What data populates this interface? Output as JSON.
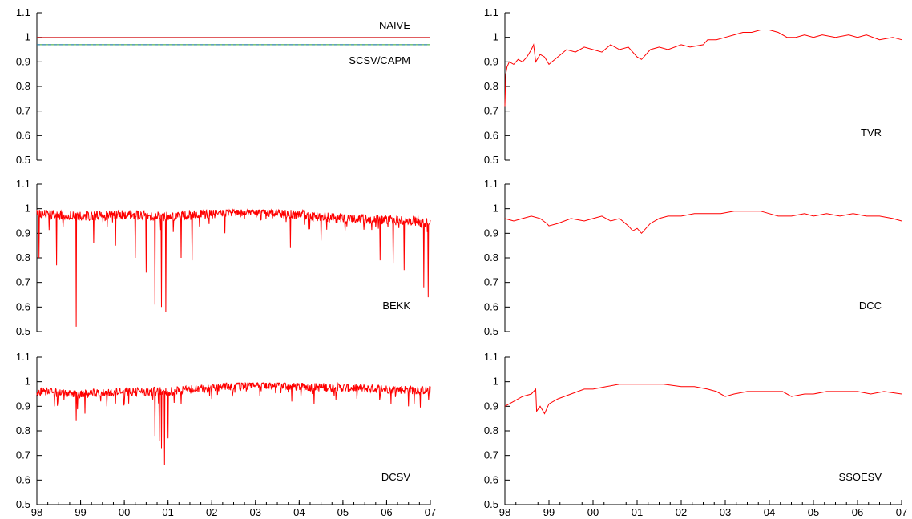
{
  "chart_data": [
    {
      "type": "line",
      "label": "NAIVE",
      "label2": "SCSV/CAPM",
      "ylim": [
        0.5,
        1.1
      ],
      "yticks": [
        "0.5",
        "0.6",
        "0.7",
        "0.8",
        "0.9",
        "1",
        "1.1"
      ],
      "xlim": [
        1998,
        2007
      ],
      "series": [
        {
          "name": "NAIVE",
          "color": "#d62728",
          "dash": "",
          "x": [
            1998,
            2007
          ],
          "y": [
            1.0,
            1.0
          ]
        },
        {
          "name": "SCSV/CAPM",
          "color": "#2ca02c",
          "dash": "",
          "x": [
            1998,
            2007
          ],
          "y": [
            0.97,
            0.97
          ]
        },
        {
          "name": "SCSV/CAPM",
          "color": "#1f77b4",
          "dash": "4,3",
          "x": [
            1998,
            2007
          ],
          "y": [
            0.97,
            0.97
          ]
        }
      ]
    },
    {
      "type": "line",
      "label": "TVR",
      "ylim": [
        0.5,
        1.1
      ],
      "yticks": [
        "0.5",
        "0.6",
        "0.7",
        "0.8",
        "0.9",
        "1",
        "1.1"
      ],
      "xlim": [
        1998,
        2007
      ],
      "series": [
        {
          "color": "#ff0000",
          "x": [
            1998.0,
            1998.02,
            1998.05,
            1998.1,
            1998.2,
            1998.3,
            1998.4,
            1998.5,
            1998.6,
            1998.65,
            1998.7,
            1998.8,
            1998.9,
            1999.0,
            1999.2,
            1999.4,
            1999.6,
            1999.8,
            2000.0,
            2000.2,
            2000.4,
            2000.6,
            2000.8,
            2001.0,
            2001.1,
            2001.3,
            2001.5,
            2001.7,
            2002.0,
            2002.2,
            2002.5,
            2002.6,
            2002.8,
            2003.0,
            2003.2,
            2003.4,
            2003.6,
            2003.8,
            2004.0,
            2004.2,
            2004.4,
            2004.6,
            2004.8,
            2005.0,
            2005.2,
            2005.5,
            2005.8,
            2006.0,
            2006.2,
            2006.5,
            2006.8,
            2007.0
          ],
          "y": [
            0.72,
            0.85,
            0.88,
            0.9,
            0.89,
            0.91,
            0.9,
            0.92,
            0.95,
            0.97,
            0.9,
            0.93,
            0.92,
            0.89,
            0.92,
            0.95,
            0.94,
            0.96,
            0.95,
            0.94,
            0.97,
            0.95,
            0.96,
            0.92,
            0.91,
            0.95,
            0.96,
            0.95,
            0.97,
            0.96,
            0.97,
            0.99,
            0.99,
            1.0,
            1.01,
            1.02,
            1.02,
            1.03,
            1.03,
            1.02,
            1.0,
            1.0,
            1.01,
            1.0,
            1.01,
            1.0,
            1.01,
            1.0,
            1.01,
            0.99,
            1.0,
            0.99
          ]
        }
      ]
    },
    {
      "type": "line",
      "label": "BEKK",
      "ylim": [
        0.5,
        1.1
      ],
      "yticks": [
        "0.5",
        "0.6",
        "0.7",
        "0.8",
        "0.9",
        "1",
        "1.1"
      ],
      "xlim": [
        1998,
        2007
      ],
      "base": [
        [
          1998,
          0.98
        ],
        [
          1999,
          0.97
        ],
        [
          2000,
          0.975
        ],
        [
          2001,
          0.97
        ],
        [
          2002,
          0.98
        ],
        [
          2003,
          0.99
        ],
        [
          2004,
          0.975
        ],
        [
          2005,
          0.96
        ],
        [
          2006,
          0.955
        ],
        [
          2007,
          0.945
        ]
      ],
      "noise": 0.02,
      "spikes": [
        [
          1998.05,
          0.8
        ],
        [
          1998.45,
          0.77
        ],
        [
          1998.9,
          0.52
        ],
        [
          1999.3,
          0.86
        ],
        [
          1999.8,
          0.85
        ],
        [
          2000.25,
          0.8
        ],
        [
          2000.5,
          0.74
        ],
        [
          2000.7,
          0.61
        ],
        [
          2000.85,
          0.6
        ],
        [
          2000.95,
          0.58
        ],
        [
          2001.3,
          0.8
        ],
        [
          2001.55,
          0.79
        ],
        [
          2003.8,
          0.84
        ],
        [
          2005.85,
          0.79
        ],
        [
          2006.15,
          0.78
        ],
        [
          2006.4,
          0.75
        ],
        [
          2006.85,
          0.68
        ],
        [
          2006.95,
          0.64
        ],
        [
          2004.5,
          0.87
        ],
        [
          2002.3,
          0.9
        ]
      ],
      "series": [
        {
          "color": "#ff0000"
        }
      ]
    },
    {
      "type": "line",
      "label": "DCC",
      "ylim": [
        0.5,
        1.1
      ],
      "yticks": [
        "0.5",
        "0.6",
        "0.7",
        "0.8",
        "0.9",
        "1",
        "1.1"
      ],
      "xlim": [
        1998,
        2007
      ],
      "series": [
        {
          "color": "#ff0000",
          "x": [
            1998.0,
            1998.2,
            1998.4,
            1998.6,
            1998.8,
            1998.95,
            1999.0,
            1999.2,
            1999.5,
            1999.8,
            2000.0,
            2000.2,
            2000.4,
            2000.6,
            2000.8,
            2000.9,
            2001.0,
            2001.1,
            2001.3,
            2001.5,
            2001.7,
            2002.0,
            2002.3,
            2002.6,
            2002.9,
            2003.2,
            2003.5,
            2003.8,
            2004.0,
            2004.2,
            2004.5,
            2004.8,
            2005.0,
            2005.3,
            2005.6,
            2005.9,
            2006.2,
            2006.5,
            2006.8,
            2007.0
          ],
          "y": [
            0.96,
            0.95,
            0.96,
            0.97,
            0.96,
            0.94,
            0.93,
            0.94,
            0.96,
            0.95,
            0.96,
            0.97,
            0.95,
            0.96,
            0.93,
            0.91,
            0.92,
            0.9,
            0.94,
            0.96,
            0.97,
            0.97,
            0.98,
            0.98,
            0.98,
            0.99,
            0.99,
            0.99,
            0.98,
            0.97,
            0.97,
            0.98,
            0.97,
            0.98,
            0.97,
            0.98,
            0.97,
            0.97,
            0.96,
            0.95
          ]
        }
      ]
    },
    {
      "type": "line",
      "label": "DCSV",
      "ylim": [
        0.5,
        1.1
      ],
      "yticks": [
        "0.5",
        "0.6",
        "0.7",
        "0.8",
        "0.9",
        "1",
        "1.1"
      ],
      "xlim": [
        1998,
        2007
      ],
      "xticks": [
        "98",
        "99",
        "00",
        "01",
        "02",
        "03",
        "04",
        "05",
        "06",
        "07"
      ],
      "base": [
        [
          1998,
          0.96
        ],
        [
          1999,
          0.95
        ],
        [
          2000,
          0.96
        ],
        [
          2001,
          0.96
        ],
        [
          2002,
          0.975
        ],
        [
          2003,
          0.99
        ],
        [
          2004,
          0.98
        ],
        [
          2005,
          0.975
        ],
        [
          2006,
          0.97
        ],
        [
          2007,
          0.965
        ]
      ],
      "noise": 0.018,
      "spikes": [
        [
          1998.4,
          0.9
        ],
        [
          1998.9,
          0.84
        ],
        [
          1999.1,
          0.87
        ],
        [
          1999.6,
          0.9
        ],
        [
          2000.0,
          0.91
        ],
        [
          2000.7,
          0.78
        ],
        [
          2000.8,
          0.76
        ],
        [
          2000.85,
          0.73
        ],
        [
          2000.92,
          0.66
        ],
        [
          2001.0,
          0.77
        ],
        [
          2001.3,
          0.91
        ],
        [
          2002.0,
          0.93
        ],
        [
          2004.3,
          0.95
        ],
        [
          2006.1,
          0.91
        ],
        [
          2006.5,
          0.9
        ]
      ],
      "series": [
        {
          "color": "#ff0000"
        }
      ]
    },
    {
      "type": "line",
      "label": "SSOESV",
      "ylim": [
        0.5,
        1.1
      ],
      "yticks": [
        "0.5",
        "0.6",
        "0.7",
        "0.8",
        "0.9",
        "1",
        "1.1"
      ],
      "xlim": [
        1998,
        2007
      ],
      "xticks": [
        "98",
        "99",
        "00",
        "01",
        "02",
        "03",
        "04",
        "05",
        "06",
        "07"
      ],
      "series": [
        {
          "color": "#ff0000",
          "x": [
            1998.0,
            1998.2,
            1998.4,
            1998.6,
            1998.7,
            1998.72,
            1998.8,
            1998.9,
            1999.0,
            1999.2,
            1999.5,
            1999.8,
            2000.0,
            2000.3,
            2000.6,
            2001.0,
            2001.3,
            2001.6,
            2002.0,
            2002.3,
            2002.6,
            2002.8,
            2003.0,
            2003.2,
            2003.5,
            2003.8,
            2004.0,
            2004.3,
            2004.5,
            2004.8,
            2005.0,
            2005.3,
            2005.6,
            2006.0,
            2006.3,
            2006.6,
            2007.0
          ],
          "y": [
            0.9,
            0.92,
            0.94,
            0.95,
            0.97,
            0.88,
            0.9,
            0.87,
            0.91,
            0.93,
            0.95,
            0.97,
            0.97,
            0.98,
            0.99,
            0.99,
            0.99,
            0.99,
            0.98,
            0.98,
            0.97,
            0.96,
            0.94,
            0.95,
            0.96,
            0.96,
            0.96,
            0.96,
            0.94,
            0.95,
            0.95,
            0.96,
            0.96,
            0.96,
            0.95,
            0.96,
            0.95
          ]
        }
      ]
    }
  ]
}
